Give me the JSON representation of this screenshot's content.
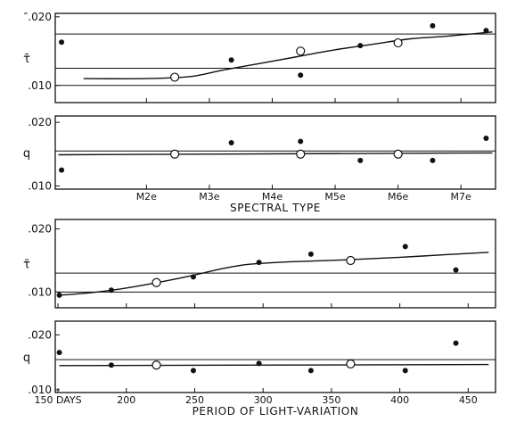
{
  "chart_data": [
    {
      "panel": "a",
      "type": "scatter",
      "ylabel": "τ̄",
      "ytick_labels": [
        "″.020",
        ".010"
      ],
      "y_ticks": [
        0.02,
        0.01
      ],
      "ylim": [
        0.0075,
        0.0205
      ],
      "x_ticks": [
        2,
        3,
        4,
        5,
        6,
        7
      ],
      "xlim": [
        0.55,
        7.55
      ],
      "reference_lines": [
        0.0175,
        0.0125,
        0.01
      ],
      "filled_points": {
        "x": [
          0.65,
          3.35,
          4.45,
          5.4,
          6.55,
          7.4
        ],
        "y": [
          0.0163,
          0.0137,
          0.0115,
          0.0158,
          0.0187,
          0.018
        ]
      },
      "open_points": {
        "x": [
          2.45,
          4.45,
          6.0
        ],
        "y": [
          0.0112,
          0.015,
          0.0162
        ]
      },
      "curve": {
        "x": [
          1.0,
          2.0,
          2.7,
          3.2,
          3.8,
          4.4,
          5.0,
          5.6,
          6.2,
          6.8,
          7.5
        ],
        "y": [
          0.011,
          0.011,
          0.0113,
          0.0122,
          0.0132,
          0.0142,
          0.0152,
          0.016,
          0.0168,
          0.0172,
          0.0178
        ]
      }
    },
    {
      "panel": "b",
      "type": "scatter",
      "ylabel": "q",
      "ytick_labels": [
        ".020",
        ".010"
      ],
      "y_ticks": [
        0.02,
        0.01
      ],
      "ylim": [
        0.0095,
        0.021
      ],
      "x_ticks": [
        2,
        3,
        4,
        5,
        6,
        7
      ],
      "xtick_labels": [
        "M2e",
        "M3e",
        "M4e",
        "M5e",
        "M6e",
        "M7e"
      ],
      "xlim": [
        0.55,
        7.55
      ],
      "xlabel": "SPECTRAL TYPE",
      "reference_lines": [
        0.0155
      ],
      "filled_points": {
        "x": [
          0.65,
          3.35,
          4.45,
          5.4,
          6.55,
          7.4
        ],
        "y": [
          0.0125,
          0.0168,
          0.017,
          0.014,
          0.014,
          0.0175
        ]
      },
      "open_points": {
        "x": [
          2.45,
          4.45,
          6.0
        ],
        "y": [
          0.015,
          0.015,
          0.015
        ]
      },
      "fit_line": {
        "x": [
          0.6,
          7.5
        ],
        "y": [
          0.0149,
          0.0152
        ]
      }
    },
    {
      "panel": "c",
      "type": "scatter",
      "ylabel": "τ̄",
      "ytick_labels": [
        ".020",
        ".010"
      ],
      "y_ticks": [
        0.02,
        0.01
      ],
      "ylim": [
        0.0075,
        0.0215
      ],
      "x_ticks": [
        150,
        200,
        250,
        300,
        350,
        400,
        450
      ],
      "xlim": [
        148,
        470
      ],
      "reference_lines": [
        0.013,
        0.01
      ],
      "filled_points": {
        "x": [
          151,
          189,
          249,
          297,
          335,
          404,
          441
        ],
        "y": [
          0.0095,
          0.0103,
          0.0124,
          0.0147,
          0.016,
          0.0172,
          0.0135
        ]
      },
      "open_points": {
        "x": [
          222,
          364
        ],
        "y": [
          0.0115,
          0.015
        ]
      },
      "curve": {
        "x": [
          151,
          170,
          190,
          210,
          230,
          250,
          270,
          290,
          320,
          360,
          400,
          440,
          465
        ],
        "y": [
          0.0095,
          0.0098,
          0.0103,
          0.011,
          0.0118,
          0.0127,
          0.0137,
          0.0144,
          0.0148,
          0.0151,
          0.0155,
          0.016,
          0.0163
        ]
      }
    },
    {
      "panel": "d",
      "type": "scatter",
      "ylabel": "q",
      "ytick_labels": [
        ".020",
        ".010"
      ],
      "y_ticks": [
        0.02,
        0.01
      ],
      "ylim": [
        0.0095,
        0.0225
      ],
      "x_ticks": [
        150,
        200,
        250,
        300,
        350,
        400,
        450
      ],
      "xtick_labels": [
        "150 DAYS",
        "200",
        "250",
        "300",
        "350",
        "400",
        "450"
      ],
      "xlim": [
        148,
        470
      ],
      "xlabel": "PERIOD OF LIGHT-VARIATION",
      "reference_lines": [
        0.0155
      ],
      "filled_points": {
        "x": [
          151,
          189,
          249,
          297,
          335,
          404,
          441
        ],
        "y": [
          0.0168,
          0.0145,
          0.0135,
          0.0148,
          0.0135,
          0.0135,
          0.0185
        ]
      },
      "open_points": {
        "x": [
          222,
          364
        ],
        "y": [
          0.0145,
          0.0147
        ]
      },
      "fit_line": {
        "x": [
          151,
          465
        ],
        "y": [
          0.0144,
          0.0146
        ]
      }
    }
  ]
}
